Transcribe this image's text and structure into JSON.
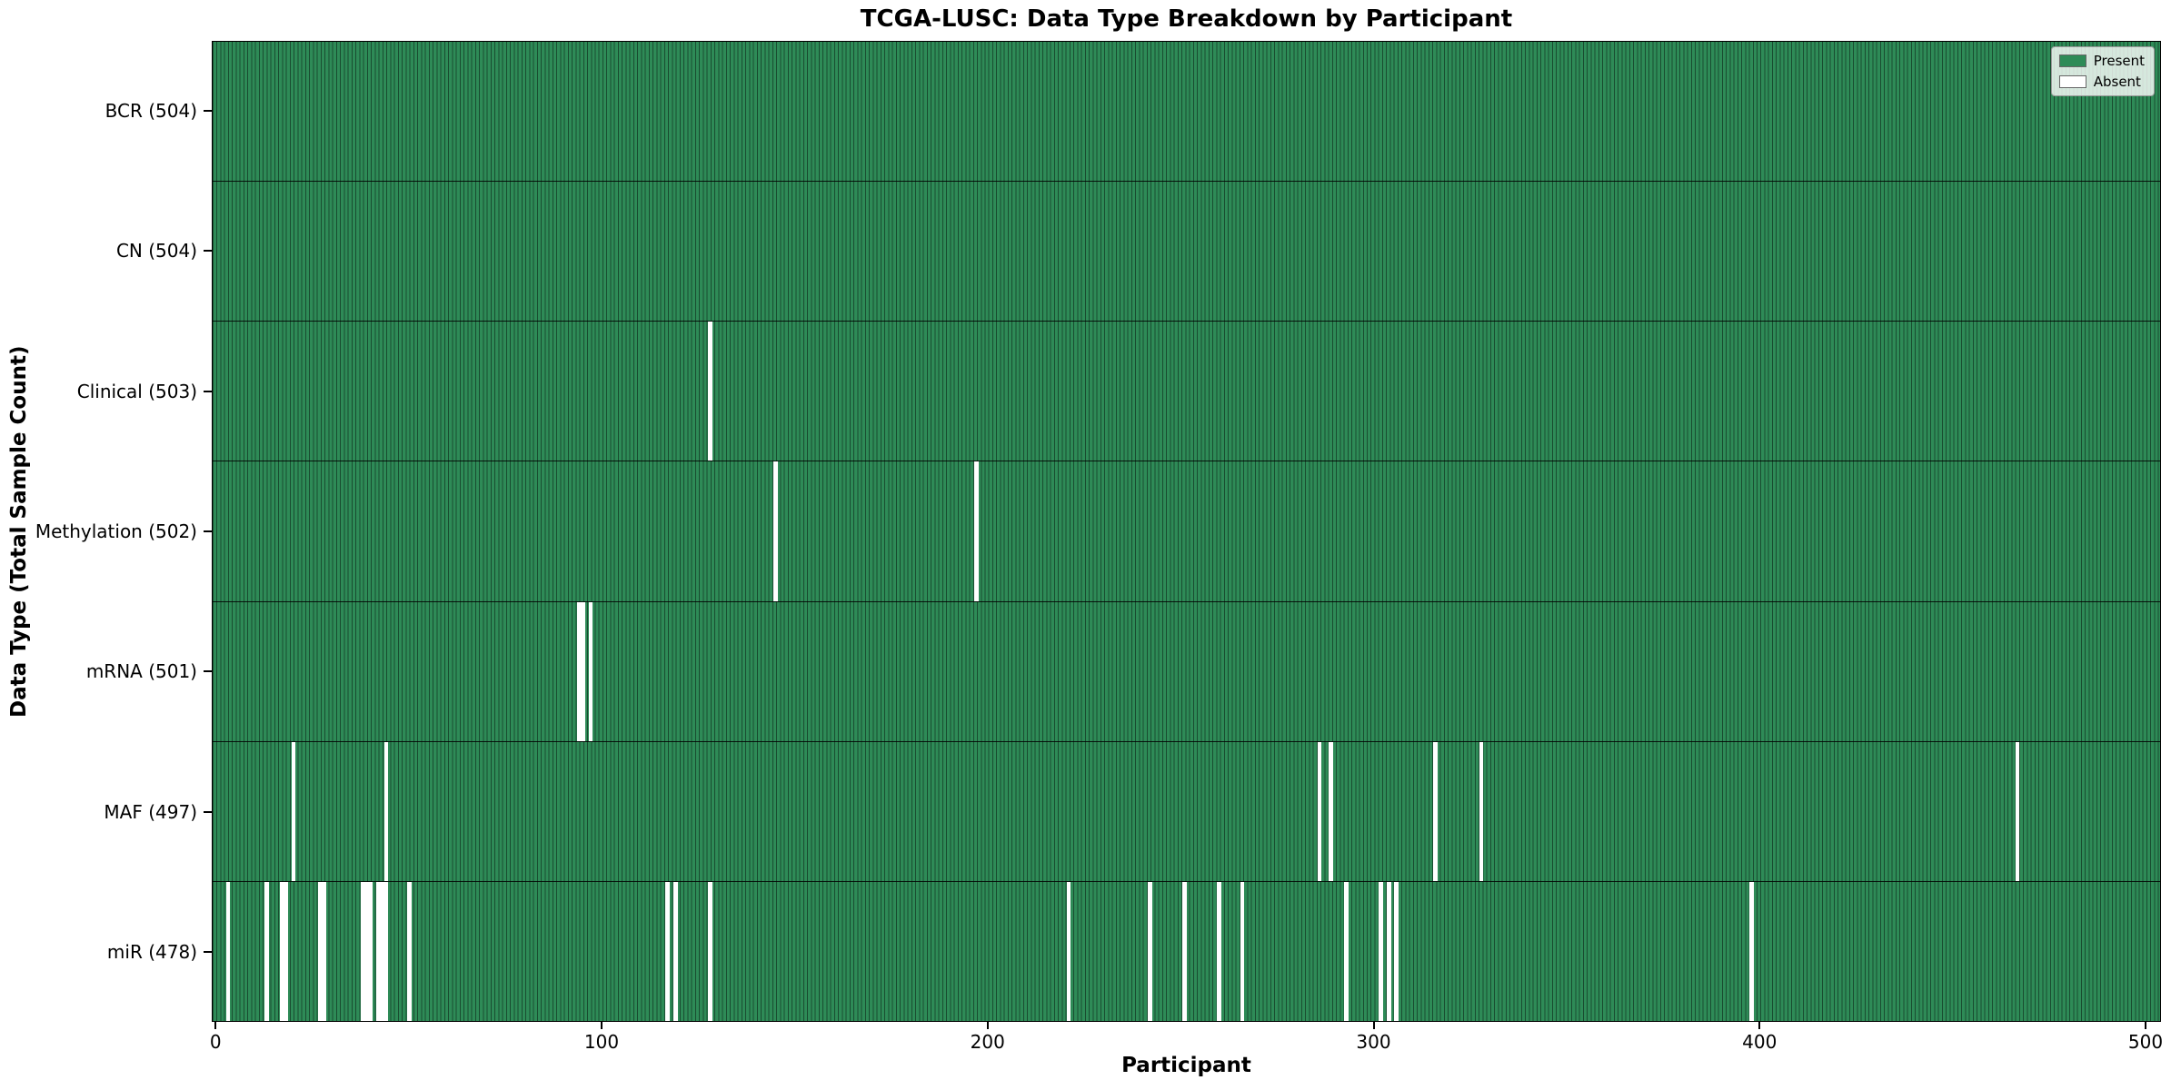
{
  "title": "TCGA-LUSC: Data Type Breakdown by Participant",
  "xlabel": "Participant",
  "ylabel": "Data Type (Total Sample Count)",
  "legend": {
    "present_label": "Present",
    "absent_label": "Absent"
  },
  "colors": {
    "present": "#2e8b57",
    "absent": "#ffffff",
    "bar_edge": "#1c4a33",
    "axis": "#000000"
  },
  "chart_data": {
    "type": "heatmap",
    "title": "TCGA-LUSC: Data Type Breakdown by Participant",
    "xlabel": "Participant",
    "ylabel": "Data Type (Total Sample Count)",
    "legend_entries": [
      "Present",
      "Absent"
    ],
    "legend_position": "upper right",
    "grid": false,
    "n_participants": 504,
    "x_axis_range": [
      -1,
      504
    ],
    "x_ticks": [
      0,
      100,
      200,
      300,
      400,
      500
    ],
    "rows": [
      {
        "name": "BCR",
        "label": "BCR (504)",
        "total": 504,
        "absent": []
      },
      {
        "name": "CN",
        "label": "CN (504)",
        "total": 504,
        "absent": []
      },
      {
        "name": "Clinical",
        "label": "Clinical (503)",
        "total": 503,
        "absent": [
          128
        ]
      },
      {
        "name": "Methylation",
        "label": "Methylation (502)",
        "total": 502,
        "absent": [
          145,
          197
        ]
      },
      {
        "name": "mRNA",
        "label": "mRNA (501)",
        "total": 501,
        "absent": [
          94,
          95,
          97
        ]
      },
      {
        "name": "MAF",
        "label": "MAF (497)",
        "total": 497,
        "absent": [
          20,
          44,
          286,
          289,
          316,
          328,
          467
        ]
      },
      {
        "name": "miR",
        "label": "miR (478)",
        "total": 478,
        "absent": [
          3,
          13,
          17,
          18,
          27,
          28,
          38,
          39,
          40,
          42,
          43,
          44,
          50,
          117,
          119,
          128,
          221,
          242,
          251,
          260,
          266,
          293,
          302,
          304,
          306,
          398
        ]
      }
    ]
  }
}
